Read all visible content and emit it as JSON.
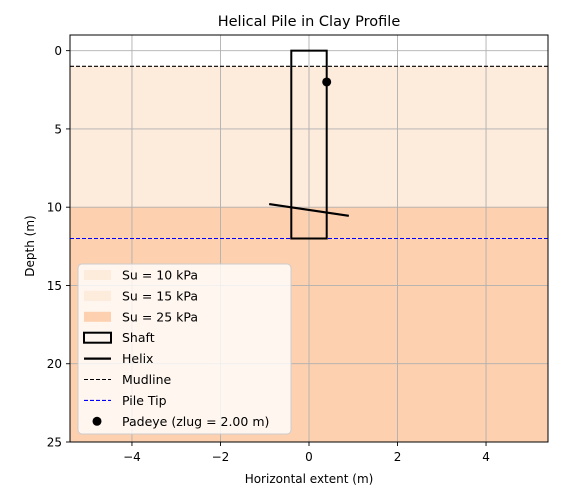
{
  "chart_data": {
    "type": "diagram",
    "title": "Helical Pile in Clay Profile",
    "xlabel": "Horizontal extent (m)",
    "ylabel": "Depth (m)",
    "xlim": [
      -5.4,
      5.4
    ],
    "ylim": [
      25,
      -1
    ],
    "y_inverted": true,
    "grid": true,
    "xticks": [
      -4,
      -2,
      0,
      2,
      4
    ],
    "xtick_labels": [
      "−4",
      "−2",
      "0",
      "2",
      "4"
    ],
    "yticks": [
      0,
      5,
      10,
      15,
      20,
      25
    ],
    "ytick_labels": [
      "0",
      "5",
      "10",
      "15",
      "20",
      "25"
    ],
    "legend_position": "lower-left",
    "layers": [
      {
        "label": "Su = 10 kPa",
        "top": 1,
        "bottom": 5,
        "color": "#fdebdc"
      },
      {
        "label": "Su = 15 kPa",
        "top": 5,
        "bottom": 10,
        "color": "#fdebdc"
      },
      {
        "label": "Su = 25 kPa",
        "top": 10,
        "bottom": 25,
        "color": "#fdd0b0"
      }
    ],
    "shaft": {
      "label": "Shaft",
      "x0": -0.4,
      "x1": 0.4,
      "top": 0,
      "bottom": 12,
      "color": "#000000"
    },
    "helix": {
      "label": "Helix",
      "x": [
        -0.9,
        0.9
      ],
      "y": [
        9.8,
        10.55
      ],
      "color": "#000000"
    },
    "mudline": {
      "label": "Mudline",
      "depth": 1,
      "color": "#000000"
    },
    "pile_tip": {
      "label": "Pile Tip",
      "depth": 12,
      "color": "#0000ff"
    },
    "padeye": {
      "label": "Padeye (zlug = 2.00 m)",
      "x": 0.4,
      "y": 2,
      "color": "#000000"
    }
  }
}
